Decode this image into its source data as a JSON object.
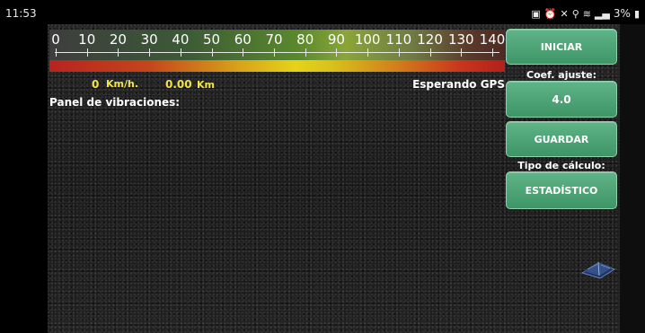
{
  "status_bar": {
    "time": "11:53",
    "battery_text": "3%",
    "icons": [
      "screenshot-icon",
      "alarm-icon",
      "silent-icon",
      "location-icon",
      "wifi-icon",
      "signal-icon",
      "battery-icon"
    ]
  },
  "scale": {
    "ticks": [
      "0",
      "10",
      "20",
      "30",
      "40",
      "50",
      "60",
      "70",
      "80",
      "90",
      "100",
      "110",
      "120",
      "130",
      "140"
    ]
  },
  "readout": {
    "speed_value": "0",
    "speed_unit": "Km/h.",
    "distance_value": "0.00",
    "distance_unit": "Km",
    "gps_status": "Esperando GPS"
  },
  "panel": {
    "vibration_label": "Panel de vibraciones:"
  },
  "controls": {
    "start_label": "INICIAR",
    "coef_label": "Coef. ajuste:",
    "coef_value": "4.0",
    "save_label": "GUARDAR",
    "calc_type_label": "Tipo de cálculo:",
    "calc_type_value": "ESTADÍSTICO"
  },
  "colors": {
    "readout_yellow": "#f2e34a",
    "button_green": "#4ea676",
    "scale_red": "#b8231e",
    "scale_yellow": "#e6d21a"
  }
}
